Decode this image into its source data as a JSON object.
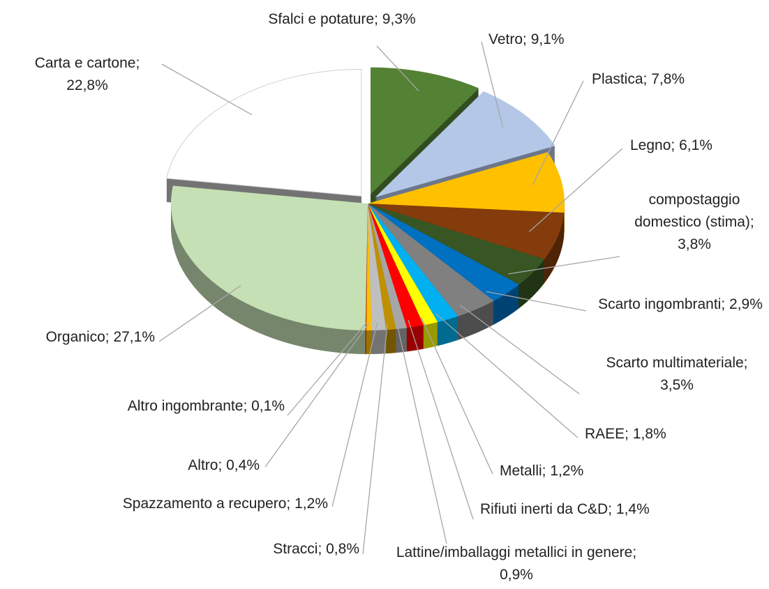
{
  "chart_data": {
    "type": "pie",
    "categories": [
      "Sfalci e potature;",
      "Vetro;",
      "Plastica;",
      "Legno;",
      "compostaggio domestico (stima);",
      "Scarto ingombranti;",
      "Scarto multimateriale;",
      "RAEE;",
      "Metalli;",
      "Rifiuti inerti da C&D;",
      "Lattine/imballaggi metallici in genere;",
      "Stracci;",
      "Spazzamento a recupero;",
      "Altro;",
      "Altro ingombrante;",
      "Organico;",
      "Carta e cartone;"
    ],
    "values": [
      9.3,
      9.1,
      7.8,
      6.1,
      3.8,
      2.9,
      3.5,
      1.8,
      1.2,
      1.4,
      0.9,
      0.8,
      1.2,
      0.4,
      0.1,
      27.1,
      22.8
    ],
    "value_labels": [
      "9,3%",
      "9,1%",
      "7,8%",
      "6,1%",
      "3,8%",
      "2,9%",
      "3,5%",
      "1,8%",
      "1,2%",
      "1,4%",
      "0,9%",
      "0,8%",
      "1,2%",
      "0,4%",
      "0,1%",
      "27,1%",
      "22,8%"
    ],
    "colors": [
      "#548235",
      "#b4c7e7",
      "#ffc000",
      "#843c0c",
      "#375623",
      "#0070c0",
      "#808080",
      "#00b0f0",
      "#ffff00",
      "#ff0000",
      "#a6a6a6",
      "#bf9000",
      "#bfbfbf",
      "#ffc000",
      "#c55a11",
      "#c5e0b4",
      "#ffffff"
    ]
  }
}
